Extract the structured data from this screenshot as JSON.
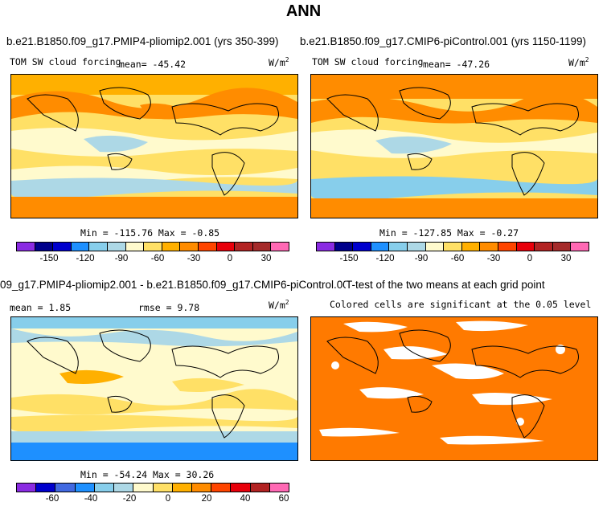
{
  "figure_title": "ANN",
  "panels": [
    {
      "title": "b.e21.B1850.f09_g17.PMIP4-pliomip2.001 (yrs 350-399)",
      "left_label": "TOM SW cloud forcing",
      "mean_label": "mean= -45.42",
      "units": "W/m",
      "units_exp": "2",
      "minmax": "Min = -115.76 Max = -0.85",
      "colorbar_ticks": [
        "-150",
        "-120",
        "-90",
        "-60",
        "-30",
        "0",
        "30"
      ],
      "colorbar_colors": [
        "#8a2be2",
        "#00008b",
        "#0000cd",
        "#1e90ff",
        "#87ceeb",
        "#add8e6",
        "#fffacd",
        "#ffe066",
        "#ffb000",
        "#ff8c00",
        "#ff4500",
        "#e8000b",
        "#b22222",
        "#a52a2a",
        "#ff69b4"
      ]
    },
    {
      "title": "b.e21.B1850.f09_g17.CMIP6-piControl.001 (yrs 1150-1199)",
      "left_label": "TOM SW cloud forcing",
      "mean_label": "mean= -47.26",
      "units": "W/m",
      "units_exp": "2",
      "minmax": "Min = -127.85 Max = -0.27",
      "colorbar_ticks": [
        "-150",
        "-120",
        "-90",
        "-60",
        "-30",
        "0",
        "30"
      ],
      "colorbar_colors": [
        "#8a2be2",
        "#00008b",
        "#0000cd",
        "#1e90ff",
        "#87ceeb",
        "#add8e6",
        "#fffacd",
        "#ffe066",
        "#ffb000",
        "#ff8c00",
        "#ff4500",
        "#e8000b",
        "#b22222",
        "#a52a2a",
        "#ff69b4"
      ]
    },
    {
      "title": "09_g17.PMIP4-pliomip2.001 - b.e21.B1850.f09_g17.CMIP6-piControl.001",
      "left_label": "mean = 1.85",
      "rmse_label": "rmse = 9.78",
      "units": "W/m",
      "units_exp": "2",
      "minmax": "Min = -54.24 Max = 30.26",
      "colorbar_ticks": [
        "-60",
        "-40",
        "-20",
        "0",
        "20",
        "40",
        "60"
      ],
      "colorbar_colors": [
        "#8a2be2",
        "#0000cd",
        "#4169e1",
        "#1e90ff",
        "#87ceeb",
        "#add8e6",
        "#fffacd",
        "#ffe066",
        "#ffb000",
        "#ff8c00",
        "#ff4500",
        "#e8000b",
        "#b22222",
        "#ff69b4"
      ]
    },
    {
      "title": "T-test of the two means at each grid point",
      "subtitle": "Colored cells are significant at the 0.05 level"
    }
  ]
}
